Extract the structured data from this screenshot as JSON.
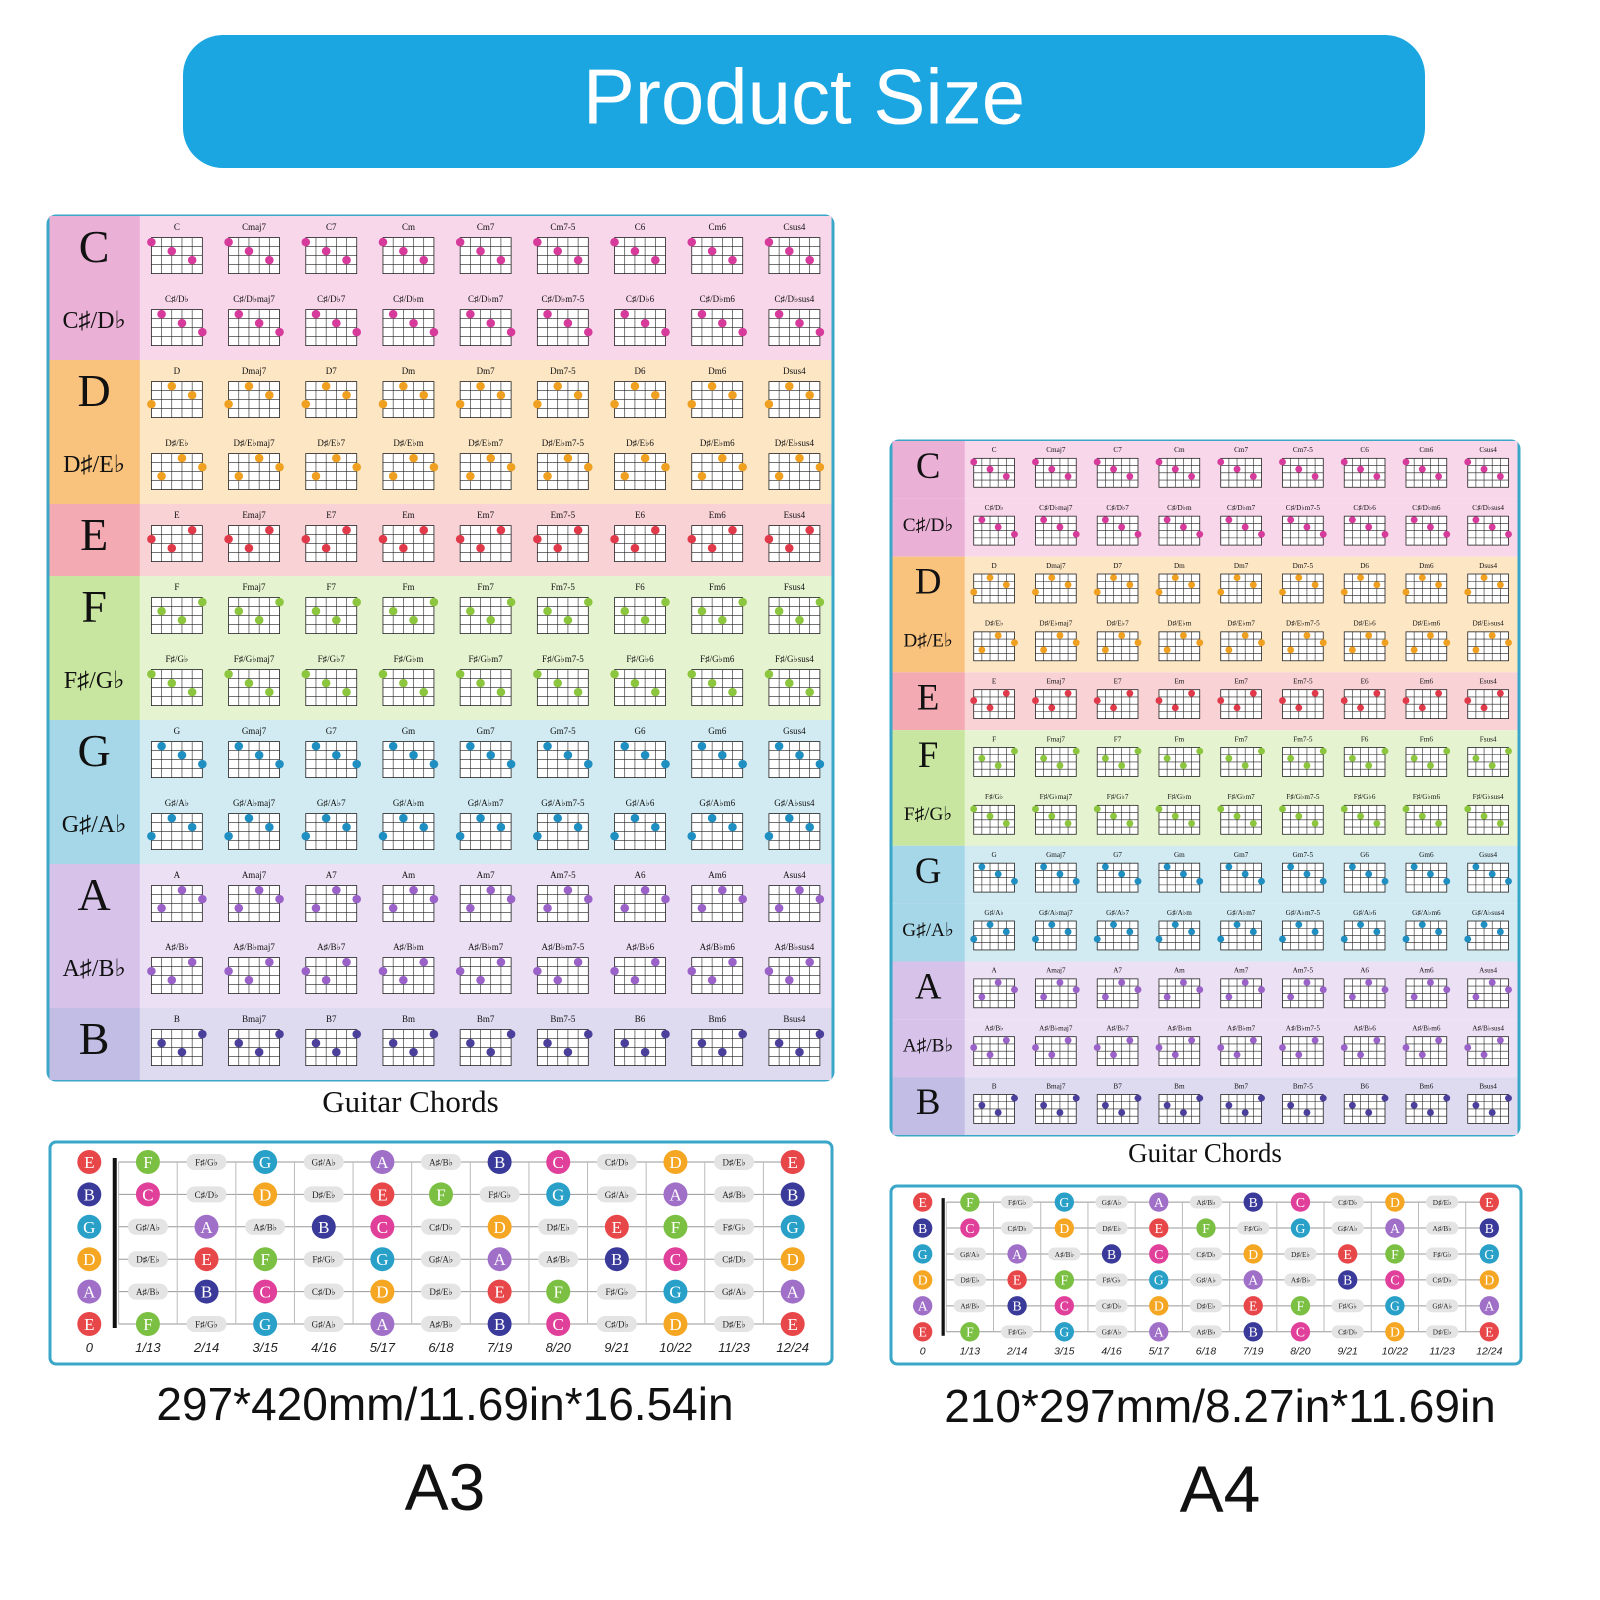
{
  "header": {
    "title": "Product Size"
  },
  "chart": {
    "caption": "Guitar Chords",
    "rows": [
      {
        "root": "C",
        "chords": [
          "C",
          "Cmaj7",
          "C7",
          "Cm",
          "Cm7",
          "Cm7-5",
          "C6",
          "Cm6",
          "Csus4"
        ]
      },
      {
        "root": "C♯/D♭",
        "chords": [
          "C♯/D♭",
          "C♯/D♭maj7",
          "C♯/D♭7",
          "C♯/D♭m",
          "C♯/D♭m7",
          "C♯/D♭m7-5",
          "C♯/D♭6",
          "C♯/D♭m6",
          "C♯/D♭sus4"
        ]
      },
      {
        "root": "D",
        "chords": [
          "D",
          "Dmaj7",
          "D7",
          "Dm",
          "Dm7",
          "Dm7-5",
          "D6",
          "Dm6",
          "Dsus4"
        ]
      },
      {
        "root": "D♯/E♭",
        "chords": [
          "D♯/E♭",
          "D♯/E♭maj7",
          "D♯/E♭7",
          "D♯/E♭m",
          "D♯/E♭m7",
          "D♯/E♭m7-5",
          "D♯/E♭6",
          "D♯/E♭m6",
          "D♯/E♭sus4"
        ]
      },
      {
        "root": "E",
        "chords": [
          "E",
          "Emaj7",
          "E7",
          "Em",
          "Em7",
          "Em7-5",
          "E6",
          "Em6",
          "Esus4"
        ]
      },
      {
        "root": "F",
        "chords": [
          "F",
          "Fmaj7",
          "F7",
          "Fm",
          "Fm7",
          "Fm7-5",
          "F6",
          "Fm6",
          "Fsus4"
        ]
      },
      {
        "root": "F♯/G♭",
        "chords": [
          "F♯/G♭",
          "F♯/G♭maj7",
          "F♯/G♭7",
          "F♯/G♭m",
          "F♯/G♭m7",
          "F♯/G♭m7-5",
          "F♯/G♭6",
          "F♯/G♭m6",
          "F♯/G♭sus4"
        ]
      },
      {
        "root": "G",
        "chords": [
          "G",
          "Gmaj7",
          "G7",
          "Gm",
          "Gm7",
          "Gm7-5",
          "G6",
          "Gm6",
          "Gsus4"
        ]
      },
      {
        "root": "G♯/A♭",
        "chords": [
          "G♯/A♭",
          "G♯/A♭maj7",
          "G♯/A♭7",
          "G♯/A♭m",
          "G♯/A♭m7",
          "G♯/A♭m7-5",
          "G♯/A♭6",
          "G♯/A♭m6",
          "G♯/A♭sus4"
        ]
      },
      {
        "root": "A",
        "chords": [
          "A",
          "Amaj7",
          "A7",
          "Am",
          "Am7",
          "Am7-5",
          "A6",
          "Am6",
          "Asus4"
        ]
      },
      {
        "root": "A♯/B♭",
        "chords": [
          "A♯/B♭",
          "A♯/B♭maj7",
          "A♯/B♭7",
          "A♯/B♭m",
          "A♯/B♭m7",
          "A♯/B♭m7-5",
          "A♯/B♭6",
          "A♯/B♭m6",
          "A♯/B♭sus4"
        ]
      },
      {
        "root": "B",
        "chords": [
          "B",
          "Bmaj7",
          "B7",
          "Bm",
          "Bm7",
          "Bm7-5",
          "B6",
          "Bm6",
          "Bsus4"
        ]
      }
    ]
  },
  "fretboard": {
    "strings": [
      [
        "E",
        "F",
        "F♯/G♭",
        "G",
        "G♯/A♭",
        "A",
        "A♯/B♭",
        "B",
        "C",
        "C♯/D♭",
        "D",
        "D♯/E♭",
        "E"
      ],
      [
        "B",
        "C",
        "C♯/D♭",
        "D",
        "D♯/E♭",
        "E",
        "F",
        "F♯/G♭",
        "G",
        "G♯/A♭",
        "A",
        "A♯/B♭",
        "B"
      ],
      [
        "G",
        "G♯/A♭",
        "A",
        "A♯/B♭",
        "B",
        "C",
        "C♯/D♭",
        "D",
        "D♯/E♭",
        "E",
        "F",
        "F♯/G♭",
        "G"
      ],
      [
        "D",
        "D♯/E♭",
        "E",
        "F",
        "F♯/G♭",
        "G",
        "G♯/A♭",
        "A",
        "A♯/B♭",
        "B",
        "C",
        "C♯/D♭",
        "D"
      ],
      [
        "A",
        "A♯/B♭",
        "B",
        "C",
        "C♯/D♭",
        "D",
        "D♯/E♭",
        "E",
        "F",
        "F♯/G♭",
        "G",
        "G♯/A♭",
        "A"
      ],
      [
        "E",
        "F",
        "F♯/G♭",
        "G",
        "G♯/A♭",
        "A",
        "A♯/B♭",
        "B",
        "C",
        "C♯/D♭",
        "D",
        "D♯/E♭",
        "E"
      ]
    ],
    "frets": [
      "0",
      "1/13",
      "2/14",
      "3/15",
      "4/16",
      "5/17",
      "6/18",
      "7/19",
      "8/20",
      "9/21",
      "10/22",
      "11/23",
      "12/24"
    ]
  },
  "posters": [
    {
      "size": "297*420mm/11.69in*16.54in",
      "paper": "A3"
    },
    {
      "size": "210*297mm/8.27in*11.69in",
      "paper": "A4"
    }
  ]
}
